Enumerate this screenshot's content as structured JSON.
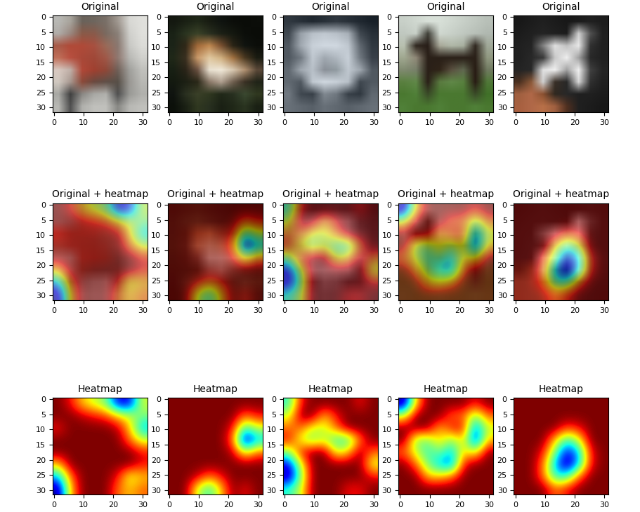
{
  "chart_data": {
    "type": "image_grid",
    "rows": [
      {
        "title": "Original",
        "type": "image"
      },
      {
        "title": "Original + heatmap",
        "type": "overlay"
      },
      {
        "title": "Heatmap",
        "type": "heatmap"
      }
    ],
    "xlim": [
      -0.5,
      31.5
    ],
    "ylim": [
      31.5,
      -0.5
    ],
    "xticks": [
      0,
      10,
      20,
      30
    ],
    "yticks": [
      0,
      5,
      10,
      15,
      20,
      25,
      30
    ],
    "images": [
      [
        [
          "#b8b8b4",
          "#a8a49c",
          "#6a625a",
          "#6e665e",
          "#7a7068",
          "#a09890",
          "#d8d8d4",
          "#e0e0dc"
        ],
        [
          "#b0aca8",
          "#9a8880",
          "#8a5a48",
          "#8a5a4a",
          "#7a6a60",
          "#8a8078",
          "#d0d0cc",
          "#e0e0dc"
        ],
        [
          "#a85a48",
          "#b04a38",
          "#b04a38",
          "#a85040",
          "#9a6a58",
          "#8a7870",
          "#c8c8c4",
          "#dcdcd8"
        ],
        [
          "#c0705a",
          "#b85040",
          "#a84838",
          "#a04838",
          "#a05848",
          "#907870",
          "#b8b8b4",
          "#d0d0cc"
        ],
        [
          "#d8c8c0",
          "#c0b0a8",
          "#b04838",
          "#a04030",
          "#904838",
          "#706058",
          "#a0a09c",
          "#c0c0bc"
        ],
        [
          "#d0c8c0",
          "#a89890",
          "#8a4a3a",
          "#6a4a40",
          "#605048",
          "#585048",
          "#9a9894",
          "#b8b8b4"
        ],
        [
          "#a8a8a4",
          "#404040",
          "#8a8884",
          "#a8a8a4",
          "#b0b0ac",
          "#505050",
          "#9a9a96",
          "#b0b0ac"
        ],
        [
          "#b8b8b4",
          "#505050",
          "#b0b0ac",
          "#c0c0bc",
          "#c0c0bc",
          "#888884",
          "#b8b8b4",
          "#c0c0bc"
        ]
      ],
      [
        [
          "#141810",
          "#1a2014",
          "#202818",
          "#181c12",
          "#101410",
          "#0c0e0a",
          "#0a0c08",
          "#0c0e0a"
        ],
        [
          "#1a2216",
          "#2a3420",
          "#3a4228",
          "#2a3020",
          "#1c2016",
          "#141810",
          "#0c0e0a",
          "#0a0c08"
        ],
        [
          "#1c2418",
          "#302818",
          "#a06838",
          "#c08850",
          "#7a5030",
          "#2a2416",
          "#101410",
          "#0c0e0a"
        ],
        [
          "#202818",
          "#3a3020",
          "#c89868",
          "#e0c8a0",
          "#d0b080",
          "#a07040",
          "#4a3820",
          "#1a1c12"
        ],
        [
          "#182014",
          "#2a2418",
          "#6a5040",
          "#e8e0d0",
          "#f0e8d8",
          "#d8c8b0",
          "#b09070",
          "#5a4838"
        ],
        [
          "#141a10",
          "#1c2014",
          "#2a2818",
          "#8a7868",
          "#b0a090",
          "#706050",
          "#3a3024",
          "#202418"
        ],
        [
          "#101410",
          "#2a3020",
          "#3a4028",
          "#303820",
          "#202818",
          "#283020",
          "#3a4830",
          "#303820"
        ],
        [
          "#0c100a",
          "#1a2014",
          "#303820",
          "#283020",
          "#1a2014",
          "#202818",
          "#2a3420",
          "#1a2014"
        ]
      ],
      [
        [
          "#303840",
          "#283038",
          "#202830",
          "#283038",
          "#303840",
          "#283038",
          "#202830",
          "#182028"
        ],
        [
          "#404850",
          "#98a0a8",
          "#b8c0c8",
          "#c0c8d0",
          "#b8c0c8",
          "#a8b0b8",
          "#404850",
          "#283038"
        ],
        [
          "#505860",
          "#a0a8b0",
          "#c8d0d8",
          "#d0d8e0",
          "#d0d8e0",
          "#c0c8d0",
          "#606870",
          "#303840"
        ],
        [
          "#505860",
          "#707880",
          "#c0c8d0",
          "#a0a8b0",
          "#b0b8c0",
          "#c8d0d8",
          "#707880",
          "#383f48"
        ],
        [
          "#606870",
          "#a0a8b0",
          "#b8c0c8",
          "#8a9098",
          "#909aa0",
          "#c0c8d0",
          "#a0a8b0",
          "#505860"
        ],
        [
          "#606870",
          "#505860",
          "#c0c8d0",
          "#d0d8e0",
          "#c8d0d8",
          "#b8c0c8",
          "#404850",
          "#505860"
        ],
        [
          "#707880",
          "#404850",
          "#384048",
          "#808890",
          "#707880",
          "#384048",
          "#303840",
          "#606870"
        ],
        [
          "#687078",
          "#606870",
          "#586068",
          "#687078",
          "#606870",
          "#586068",
          "#606870",
          "#687078"
        ]
      ],
      [
        [
          "#c8d0c8",
          "#d0d8d0",
          "#d8e0d8",
          "#d8e0d8",
          "#d0d8d0",
          "#c8d0c8",
          "#c0c8c0",
          "#b8c0b8"
        ],
        [
          "#c0c8c0",
          "#c8d0c8",
          "#404038",
          "#d0d8d0",
          "#c8d0c8",
          "#c0c8c0",
          "#b8c0b8",
          "#b0b8b0"
        ],
        [
          "#b8c0b0",
          "#302820",
          "#281e18",
          "#a8a898",
          "#b0b8a8",
          "#a8b0a0",
          "#302820",
          "#a0a898"
        ],
        [
          "#a0a890",
          "#908878",
          "#2a2018",
          "#2a2018",
          "#2a2018",
          "#2a2018",
          "#2a2018",
          "#909880"
        ],
        [
          "#808a70",
          "#78806a",
          "#2a2018",
          "#302418",
          "#5a5040",
          "#606850",
          "#281c14",
          "#707a60"
        ],
        [
          "#5a8040",
          "#608848",
          "#2a2018",
          "#5a7a40",
          "#608848",
          "#58803e",
          "#281c14",
          "#507838"
        ],
        [
          "#4a7830",
          "#508038",
          "#3a4a28",
          "#4a7830",
          "#4a7830",
          "#4a7830",
          "#3a4a28",
          "#407028"
        ],
        [
          "#508038",
          "#4a7830",
          "#4a7830",
          "#508038",
          "#4a7830",
          "#4a7830",
          "#508038",
          "#4a7830"
        ]
      ],
      [
        [
          "#181818",
          "#1c1c1c",
          "#202020",
          "#1c1c1c",
          "#181818",
          "#1c1c1c",
          "#202020",
          "#1c1c1c"
        ],
        [
          "#1c1c1c",
          "#202020",
          "#242424",
          "#202020",
          "#1c1c1c",
          "#d0d0d0",
          "#505050",
          "#202020"
        ],
        [
          "#202020",
          "#242424",
          "#808080",
          "#e0e0e0",
          "#c0c0c0",
          "#e8e8e8",
          "#303030",
          "#202020"
        ],
        [
          "#202020",
          "#282828",
          "#383838",
          "#c8c8c8",
          "#f0f0f0",
          "#a0a0a0",
          "#282828",
          "#202020"
        ],
        [
          "#242424",
          "#282828",
          "#e0e0e0",
          "#f0f0f0",
          "#a0a0a0",
          "#f0f0f0",
          "#404040",
          "#242424"
        ],
        [
          "#4a3020",
          "#8a5838",
          "#d0d0d0",
          "#3a3028",
          "#282828",
          "#d8d8d8",
          "#303030",
          "#202020"
        ],
        [
          "#a06040",
          "#b06848",
          "#8a5030",
          "#302820",
          "#282828",
          "#202020",
          "#202020",
          "#1c1c1c"
        ],
        [
          "#a86040",
          "#b06848",
          "#b87048",
          "#a06040",
          "#503020",
          "#202020",
          "#1c1c1c",
          "#181818"
        ]
      ]
    ],
    "heatmaps": [
      [
        [
          1.0,
          0.9,
          0.7,
          0.6,
          0.5,
          0.1,
          0.1,
          0.6
        ],
        [
          1.0,
          1.0,
          0.95,
          0.9,
          0.85,
          0.7,
          0.6,
          0.5
        ],
        [
          0.9,
          1.0,
          1.0,
          1.0,
          1.0,
          0.95,
          0.7,
          0.3
        ],
        [
          1.0,
          1.0,
          1.0,
          1.0,
          1.0,
          1.0,
          0.8,
          0.6
        ],
        [
          1.0,
          1.0,
          1.0,
          1.0,
          1.0,
          1.0,
          1.0,
          0.9
        ],
        [
          0.7,
          1.0,
          1.0,
          1.0,
          1.0,
          1.0,
          1.0,
          0.9
        ],
        [
          0.3,
          0.8,
          1.0,
          1.0,
          1.0,
          0.9,
          0.6,
          0.7
        ],
        [
          0.0,
          0.7,
          1.0,
          1.0,
          1.0,
          0.8,
          0.7,
          0.8
        ]
      ],
      [
        [
          1.0,
          1.0,
          1.0,
          1.0,
          1.0,
          1.0,
          1.0,
          1.0
        ],
        [
          1.0,
          1.0,
          1.0,
          1.0,
          1.0,
          1.0,
          0.8,
          0.9
        ],
        [
          1.0,
          1.0,
          1.0,
          1.0,
          1.0,
          0.9,
          0.4,
          0.6
        ],
        [
          1.0,
          1.0,
          1.0,
          1.0,
          1.0,
          0.8,
          0.0,
          0.3
        ],
        [
          1.0,
          1.0,
          1.0,
          1.0,
          1.0,
          0.95,
          0.6,
          0.8
        ],
        [
          1.0,
          1.0,
          1.0,
          1.0,
          1.0,
          1.0,
          1.0,
          1.0
        ],
        [
          1.0,
          1.0,
          0.95,
          0.8,
          0.9,
          1.0,
          1.0,
          1.0
        ],
        [
          1.0,
          1.0,
          0.6,
          0.4,
          0.7,
          1.0,
          0.9,
          1.0
        ]
      ],
      [
        [
          0.4,
          0.9,
          1.0,
          1.0,
          1.0,
          1.0,
          0.9,
          1.0
        ],
        [
          0.6,
          1.0,
          1.0,
          0.7,
          0.9,
          1.0,
          1.0,
          1.0
        ],
        [
          0.8,
          0.8,
          0.6,
          0.6,
          0.8,
          1.0,
          1.0,
          1.0
        ],
        [
          0.9,
          0.6,
          0.5,
          0.6,
          0.4,
          0.4,
          0.8,
          1.0
        ],
        [
          0.5,
          0.9,
          1.0,
          1.0,
          0.6,
          0.7,
          1.0,
          0.8
        ],
        [
          0.1,
          0.6,
          1.0,
          1.0,
          1.0,
          1.0,
          1.0,
          0.6
        ],
        [
          0.0,
          0.5,
          1.0,
          1.0,
          1.0,
          1.0,
          1.0,
          0.9
        ],
        [
          0.4,
          0.6,
          1.0,
          1.0,
          1.0,
          0.9,
          0.9,
          1.0
        ]
      ],
      [
        [
          0.0,
          0.7,
          1.0,
          1.0,
          1.0,
          1.0,
          0.9,
          1.0
        ],
        [
          0.6,
          1.0,
          1.0,
          1.0,
          0.8,
          0.8,
          0.5,
          0.8
        ],
        [
          1.0,
          1.0,
          1.0,
          0.7,
          0.9,
          0.9,
          0.2,
          0.6
        ],
        [
          1.0,
          0.5,
          0.5,
          0.7,
          0.5,
          0.7,
          0.1,
          0.7
        ],
        [
          0.8,
          0.6,
          0.4,
          0.5,
          0.3,
          0.7,
          0.6,
          1.0
        ],
        [
          1.0,
          0.8,
          0.5,
          0.3,
          0.2,
          0.9,
          1.0,
          1.0
        ],
        [
          1.0,
          1.0,
          0.7,
          0.7,
          0.8,
          1.0,
          1.0,
          1.0
        ],
        [
          1.0,
          1.0,
          1.0,
          1.0,
          1.0,
          1.0,
          1.0,
          1.0
        ]
      ],
      [
        [
          1.0,
          1.0,
          1.0,
          1.0,
          1.0,
          1.0,
          1.0,
          1.0
        ],
        [
          1.0,
          1.0,
          1.0,
          1.0,
          1.0,
          1.0,
          1.0,
          1.0
        ],
        [
          1.0,
          1.0,
          1.0,
          1.0,
          0.85,
          0.9,
          1.0,
          1.0
        ],
        [
          1.0,
          1.0,
          1.0,
          0.7,
          0.4,
          0.6,
          1.0,
          1.0
        ],
        [
          1.0,
          1.0,
          0.9,
          0.5,
          0.1,
          0.3,
          0.9,
          1.0
        ],
        [
          1.0,
          1.0,
          0.8,
          0.3,
          0.0,
          0.3,
          0.9,
          1.0
        ],
        [
          1.0,
          1.0,
          0.8,
          0.4,
          0.4,
          0.8,
          1.0,
          1.0
        ],
        [
          1.0,
          1.0,
          1.0,
          0.8,
          0.9,
          1.0,
          1.0,
          1.0
        ]
      ]
    ]
  }
}
